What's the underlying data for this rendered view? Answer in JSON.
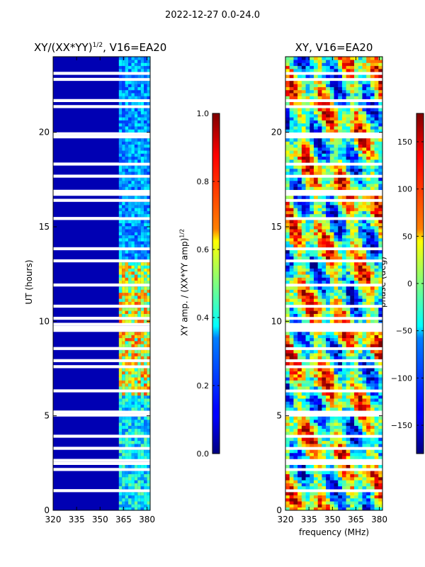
{
  "figure": {
    "suptitle": "2022-12-27 0.0-24.0",
    "left_title": "XY/(XX*YY)",
    "left_title_exp": "1/2",
    "left_title_suffix": ", V16=EA20",
    "right_title": "XY, V16=EA20",
    "ylabel": "UT (hours)",
    "xlabel": "frequency (MHz)",
    "cbar1_label": "XY amp. / (XX*YY amp)",
    "cbar1_label_exp": "1/2",
    "cbar2_label": "phase (deg)"
  },
  "chart_data": [
    {
      "type": "heatmap",
      "title": "XY/(XX*YY)^1/2, V16=EA20",
      "xlabel": "",
      "ylabel": "UT (hours)",
      "xlim": [
        320,
        382
      ],
      "ylim": [
        0,
        24
      ],
      "x_ticks": [
        "320",
        "335",
        "350",
        "365",
        "380"
      ],
      "y_ticks": [
        "0",
        "5",
        "10",
        "15",
        "20"
      ],
      "colormap": "jet",
      "colorbar": {
        "label": "XY amp. / (XX*YY amp)^1/2",
        "range": [
          0.0,
          1.0
        ],
        "ticks": [
          "0.0",
          "0.2",
          "0.4",
          "0.6",
          "0.8",
          "1.0"
        ]
      }
    },
    {
      "type": "heatmap",
      "title": "XY, V16=EA20",
      "xlabel": "frequency (MHz)",
      "ylabel": "",
      "xlim": [
        320,
        382
      ],
      "ylim": [
        0,
        24
      ],
      "x_ticks": [
        "320",
        "335",
        "350",
        "365",
        "380"
      ],
      "y_ticks": [
        "0",
        "5",
        "10",
        "15",
        "20"
      ],
      "colormap": "jet",
      "colorbar": {
        "label": "phase (deg)",
        "range": [
          -180,
          180
        ],
        "ticks": [
          "−150",
          "−100",
          "−50",
          "0",
          "50",
          "100",
          "150"
        ]
      }
    }
  ]
}
